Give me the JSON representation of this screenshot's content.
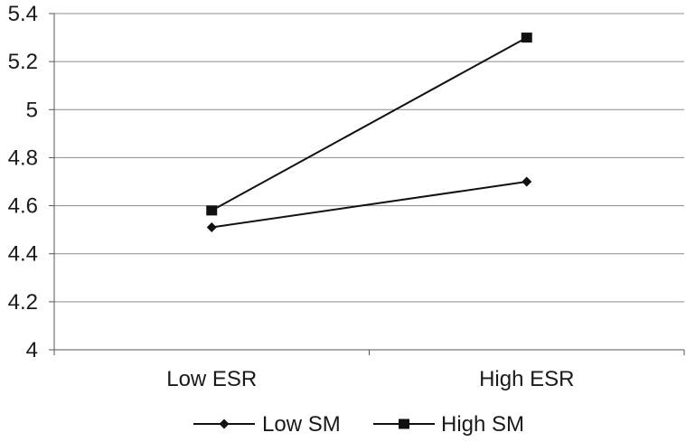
{
  "chart_data": {
    "type": "line",
    "categories": [
      "Low ESR",
      "High ESR"
    ],
    "series": [
      {
        "name": "Low SM",
        "values": [
          4.51,
          4.7
        ],
        "marker": "diamond"
      },
      {
        "name": "High SM",
        "values": [
          4.58,
          5.3
        ],
        "marker": "square"
      }
    ],
    "title": "",
    "xlabel": "",
    "ylabel": "",
    "ylim": [
      4,
      5.4
    ],
    "yticks": [
      "4",
      "4.2",
      "4.4",
      "4.6",
      "4.8",
      "5",
      "5.2",
      "5.4"
    ],
    "grid": true,
    "legend_position": "bottom",
    "colors": {
      "line": "#111111",
      "grid": "#8c8c8c",
      "axis": "#555555"
    }
  }
}
